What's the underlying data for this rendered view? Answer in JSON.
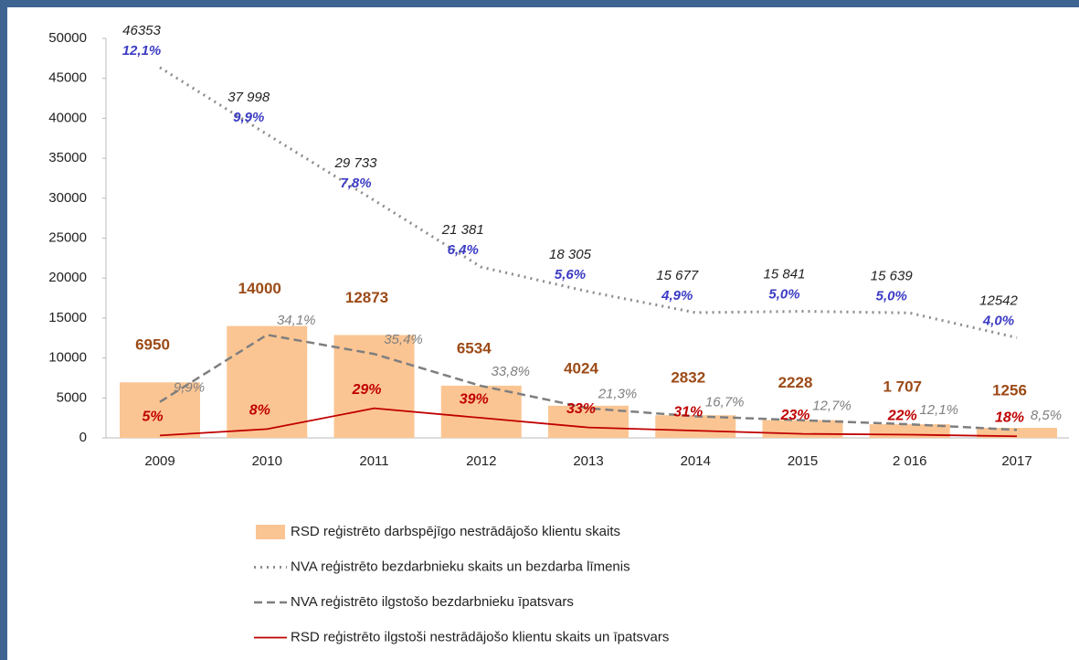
{
  "chart_data": {
    "type": "bar-line",
    "categories": [
      "2009",
      "2010",
      "2011",
      "2012",
      "2013",
      "2014",
      "2015",
      "2 016",
      "2017"
    ],
    "ylim": [
      0,
      50000
    ],
    "yticks": [
      0,
      5000,
      10000,
      15000,
      20000,
      25000,
      30000,
      35000,
      40000,
      45000,
      50000
    ],
    "legend": "bottom",
    "series": [
      {
        "name": "RSD reģistrēto darbspējīgo nestrādājošo klientu skaits",
        "kind": "bar",
        "color": "#fbc593",
        "values": [
          6950,
          14000,
          12873,
          6534,
          4024,
          2832,
          2228,
          1707,
          1256
        ],
        "value_labels": [
          "6950",
          "14000",
          "12873",
          "6534",
          "4024",
          "2832",
          "2228",
          "1 707",
          "1256"
        ]
      },
      {
        "name": "NVA reģistrēto bezdarbnieku skaits un bezdarba līmenis",
        "kind": "dotted",
        "color": "#8c8c8c",
        "values": [
          46353,
          37998,
          29733,
          21381,
          18305,
          15677,
          15841,
          15639,
          12542
        ],
        "value_labels": [
          "46353",
          "37 998",
          "29 733",
          "21 381",
          "18 305",
          "15 677",
          "15 841",
          "15 639",
          "12542"
        ],
        "rate_values": [
          12.1,
          9.9,
          7.8,
          6.4,
          5.6,
          4.9,
          5.0,
          5.0,
          4.0
        ],
        "rate_labels": [
          "12,1%",
          "9,9%",
          "7,8%",
          "6,4%",
          "5,6%",
          "4,9%",
          "5,0%",
          "5,0%",
          "4,0%"
        ],
        "rate_color": "#3b3bc4"
      },
      {
        "name": "NVA reģistrēto ilgstošo bezdarbnieku  īpatsvars",
        "kind": "dashed",
        "color": "#7f7f7f",
        "values": [
          4500,
          12900,
          10500,
          6500,
          3700,
          2700,
          2200,
          1700,
          1000
        ],
        "rate_values": [
          9.9,
          34.1,
          35.4,
          33.8,
          21.3,
          16.7,
          12.7,
          12.1,
          8.5
        ],
        "rate_labels": [
          "9,9%",
          "34,1%",
          "35,4%",
          "33,8%",
          "21,3%",
          "16,7%",
          "12,7%",
          "12,1%",
          "8,5%"
        ],
        "rate_color": "#7f7f7f"
      },
      {
        "name": "RSD reģistrēto ilgstoši nestrādājošo klientu skaits un īpatsvars",
        "kind": "solid",
        "color": "#c00000",
        "values": [
          300,
          1100,
          3700,
          2500,
          1300,
          900,
          500,
          400,
          200
        ],
        "rate_values": [
          5,
          8,
          29,
          39,
          33,
          31,
          23,
          22,
          18
        ],
        "rate_labels": [
          "5%",
          "8%",
          "29%",
          "39%",
          "33%",
          "31%",
          "23%",
          "22%",
          "18%"
        ],
        "rate_color": "#c00000"
      }
    ]
  }
}
